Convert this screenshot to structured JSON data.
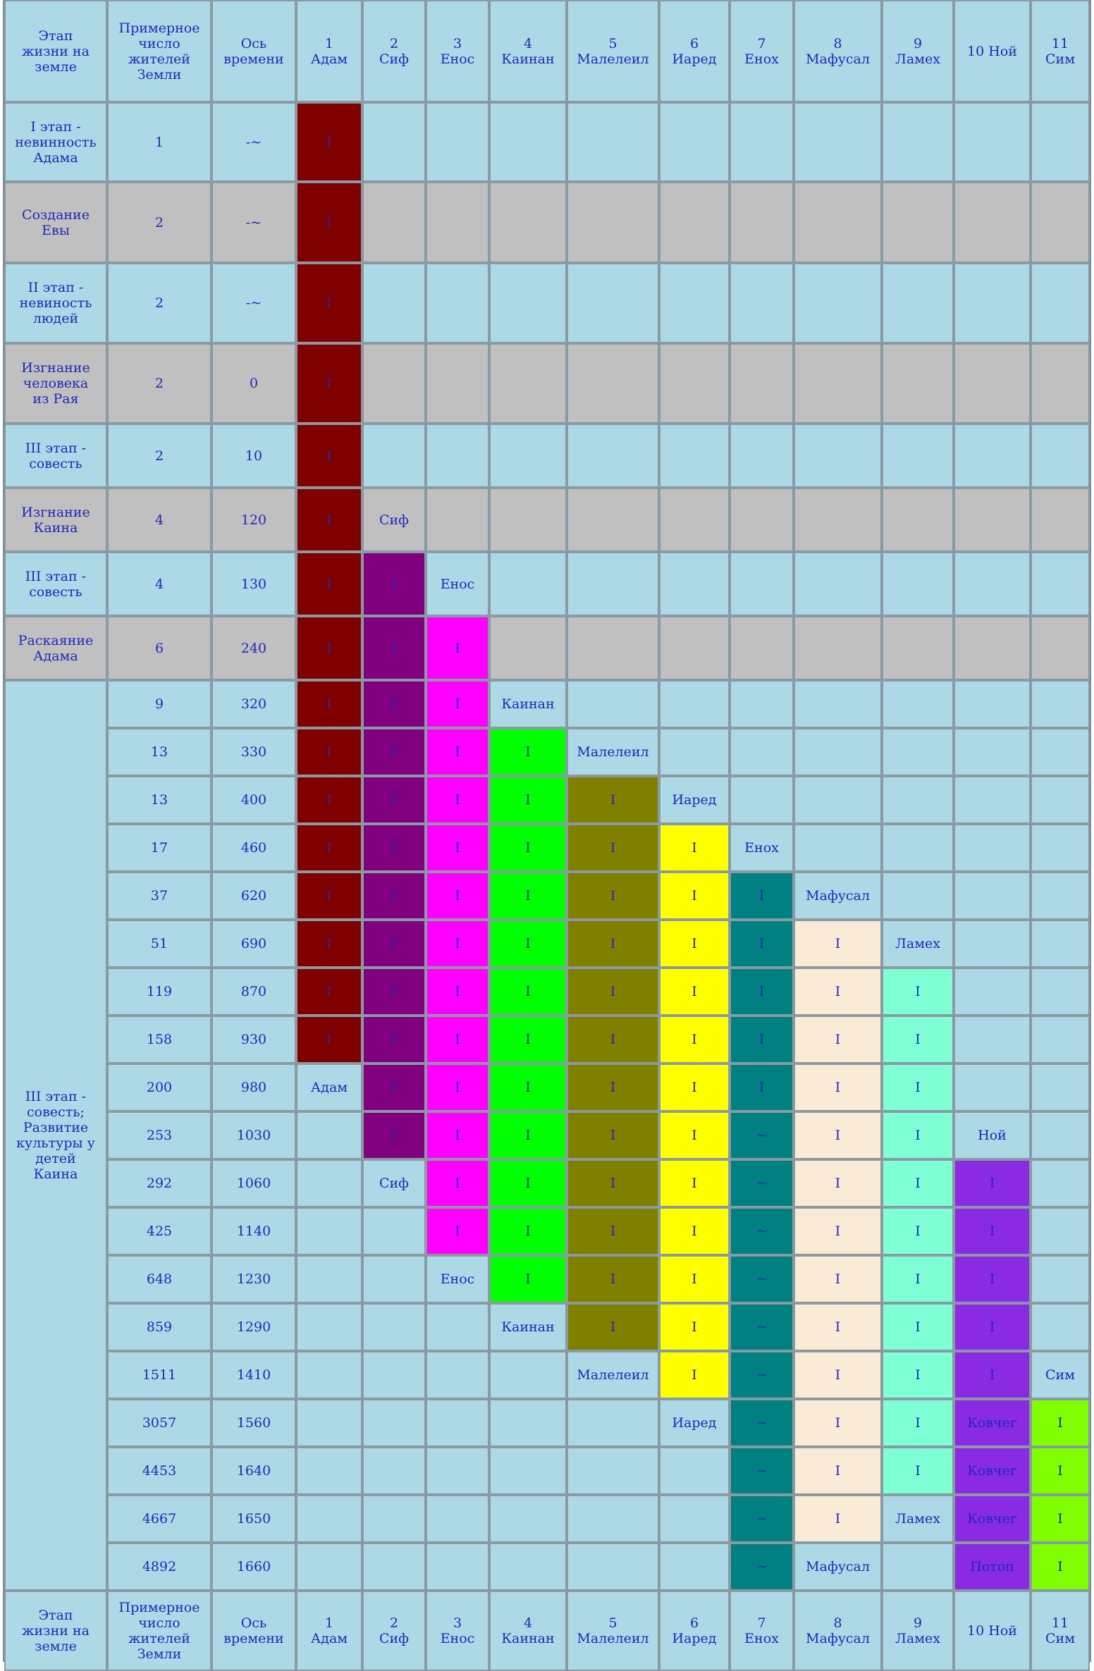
{
  "headers": [
    "Этап\nжизни на\nземле",
    "Примерное\nчисло\nжителей\nЗемли",
    "Ось\nвремени",
    "1\nАдам",
    "2\nСиф",
    "3\nЕнос",
    "4\nКаинан",
    "5\nМалелеил",
    "6\nИаред",
    "7\nЕнох",
    "8\nМафусал",
    "9\nЛамех",
    "10 Ной",
    "11\nСим"
  ],
  "colors": {
    "base": "#add8e6",
    "gray": "#c0c0c0",
    "adam": "#800000",
    "sif": "#800080",
    "enos": "#ff00ff",
    "kainan": "#00ff00",
    "maleleil": "#808000",
    "iared": "#ffff00",
    "enoh": "#008080",
    "mafusal": "#faebd7",
    "lameh": "#7fffd4",
    "noy": "#8a2be2",
    "sim": "#7fff00"
  },
  "stage_rows": [
    {
      "stage": "I этап -\nневинность\nАдама",
      "pop": "1",
      "time": "-~",
      "gray": false
    },
    {
      "stage": "Создание\nЕвы",
      "pop": "2",
      "time": "-~",
      "gray": true
    },
    {
      "stage": "II этап -\nневиность\nлюдей",
      "pop": "2",
      "time": "-~",
      "gray": false
    },
    {
      "stage": "Изгнание\nчеловека\nиз Рая",
      "pop": "2",
      "time": "0",
      "gray": true
    },
    {
      "stage": "III этап -\nсовесть",
      "pop": "2",
      "time": "10",
      "gray": false
    },
    {
      "stage": "Изгнание\nКаина",
      "pop": "4",
      "time": "120",
      "gray": true
    },
    {
      "stage": "III этап -\nсовесть",
      "pop": "4",
      "time": "130",
      "gray": false
    },
    {
      "stage": "Раскаяние\nАдама",
      "pop": "6",
      "time": "240",
      "gray": true
    }
  ],
  "merged_stage": "III этап -\nсовесть;\nРазвитие\nкультуры у\nдетей\nКаина",
  "culture_rows": [
    {
      "pop": "9",
      "time": "320"
    },
    {
      "pop": "13",
      "time": "330"
    },
    {
      "pop": "13",
      "time": "400"
    },
    {
      "pop": "17",
      "time": "460"
    },
    {
      "pop": "37",
      "time": "620"
    },
    {
      "pop": "51",
      "time": "690"
    },
    {
      "pop": "119",
      "time": "870"
    },
    {
      "pop": "158",
      "time": "930"
    },
    {
      "pop": "200",
      "time": "980"
    },
    {
      "pop": "253",
      "time": "1030"
    },
    {
      "pop": "292",
      "time": "1060"
    },
    {
      "pop": "425",
      "time": "1140"
    },
    {
      "pop": "648",
      "time": "1230"
    },
    {
      "pop": "859",
      "time": "1290"
    },
    {
      "pop": "1511",
      "time": "1410"
    },
    {
      "pop": "3057",
      "time": "1560"
    },
    {
      "pop": "4453",
      "time": "1640"
    },
    {
      "pop": "4667",
      "time": "1650"
    },
    {
      "pop": "4892",
      "time": "1660"
    }
  ],
  "patriarch_cells": [
    [
      "adam:I",
      "",
      "",
      "",
      "",
      "",
      "",
      "",
      "",
      ""
    ],
    [
      "adam:I",
      "",
      "",
      "",
      "",
      "",
      "",
      "",
      "",
      ""
    ],
    [
      "adam:I",
      "",
      "",
      "",
      "",
      "",
      "",
      "",
      "",
      ""
    ],
    [
      "adam:I",
      "",
      "",
      "",
      "",
      "",
      "",
      "",
      "",
      ""
    ],
    [
      "adam:I",
      "",
      "",
      "",
      "",
      "",
      "",
      "",
      "",
      ""
    ],
    [
      "adam:I",
      "Сиф",
      "",
      "",
      "",
      "",
      "",
      "",
      "",
      ""
    ],
    [
      "adam:I",
      "sif:I",
      "Енос",
      "",
      "",
      "",
      "",
      "",
      "",
      ""
    ],
    [
      "adam:I",
      "sif:I",
      "enos:I",
      "",
      "",
      "",
      "",
      "",
      "",
      ""
    ],
    [
      "adam:I",
      "sif:I",
      "enos:I",
      "Каинан",
      "",
      "",
      "",
      "",
      "",
      ""
    ],
    [
      "adam:I",
      "sif:I",
      "enos:I",
      "kainan:I",
      "Малелеил",
      "",
      "",
      "",
      "",
      ""
    ],
    [
      "adam:I",
      "sif:I",
      "enos:I",
      "kainan:I",
      "maleleil:I",
      "Иаред",
      "",
      "",
      "",
      ""
    ],
    [
      "adam:I",
      "sif:I",
      "enos:I",
      "kainan:I",
      "maleleil:I",
      "iared:I",
      "Енох",
      "",
      "",
      ""
    ],
    [
      "adam:I",
      "sif:I",
      "enos:I",
      "kainan:I",
      "maleleil:I",
      "iared:I",
      "enoh:I",
      "Мафусал",
      "",
      ""
    ],
    [
      "adam:I",
      "sif:I",
      "enos:I",
      "kainan:I",
      "maleleil:I",
      "iared:I",
      "enoh:I",
      "mafusal:I",
      "Ламех",
      ""
    ],
    [
      "adam:I",
      "sif:I",
      "enos:I",
      "kainan:I",
      "maleleil:I",
      "iared:I",
      "enoh:I",
      "mafusal:I",
      "lameh:I",
      ""
    ],
    [
      "adam:I",
      "sif:I",
      "enos:I",
      "kainan:I",
      "maleleil:I",
      "iared:I",
      "enoh:I",
      "mafusal:I",
      "lameh:I",
      ""
    ],
    [
      "Адам",
      "sif:I",
      "enos:I",
      "kainan:I",
      "maleleil:I",
      "iared:I",
      "enoh:I",
      "mafusal:I",
      "lameh:I",
      ""
    ],
    [
      "",
      "sif:I",
      "enos:I",
      "kainan:I",
      "maleleil:I",
      "iared:I",
      "enoh:~",
      "mafusal:I",
      "lameh:I",
      "Ной",
      ""
    ],
    [
      "",
      "Сиф",
      "enos:I",
      "kainan:I",
      "maleleil:I",
      "iared:I",
      "enoh:~",
      "mafusal:I",
      "lameh:I",
      "noy:I",
      ""
    ],
    [
      "",
      "",
      "enos:I",
      "kainan:I",
      "maleleil:I",
      "iared:I",
      "enoh:~",
      "mafusal:I",
      "lameh:I",
      "noy:I",
      ""
    ],
    [
      "",
      "",
      "Енос",
      "kainan:I",
      "maleleil:I",
      "iared:I",
      "enoh:~",
      "mafusal:I",
      "lameh:I",
      "noy:I",
      ""
    ],
    [
      "",
      "",
      "",
      "Каинан",
      "maleleil:I",
      "iared:I",
      "enoh:~",
      "mafusal:I",
      "lameh:I",
      "noy:I",
      ""
    ],
    [
      "",
      "",
      "",
      "",
      "Малелеил",
      "iared:I",
      "enoh:~",
      "mafusal:I",
      "lameh:I",
      "noy:I",
      "Сим"
    ],
    [
      "",
      "",
      "",
      "",
      "",
      "Иаред",
      "enoh:~",
      "mafusal:I",
      "lameh:I",
      "noy:Ковчег",
      "sim:I"
    ],
    [
      "",
      "",
      "",
      "",
      "",
      "",
      "enoh:~",
      "mafusal:I",
      "lameh:I",
      "noy:Ковчег",
      "sim:I"
    ],
    [
      "",
      "",
      "",
      "",
      "",
      "",
      "enoh:~",
      "mafusal:I",
      "Ламех",
      "noy:Ковчег",
      "sim:I"
    ],
    [
      "",
      "",
      "",
      "",
      "",
      "",
      "enoh:~",
      "Мафусал",
      "",
      "noy:Потоп",
      "sim:I"
    ]
  ]
}
